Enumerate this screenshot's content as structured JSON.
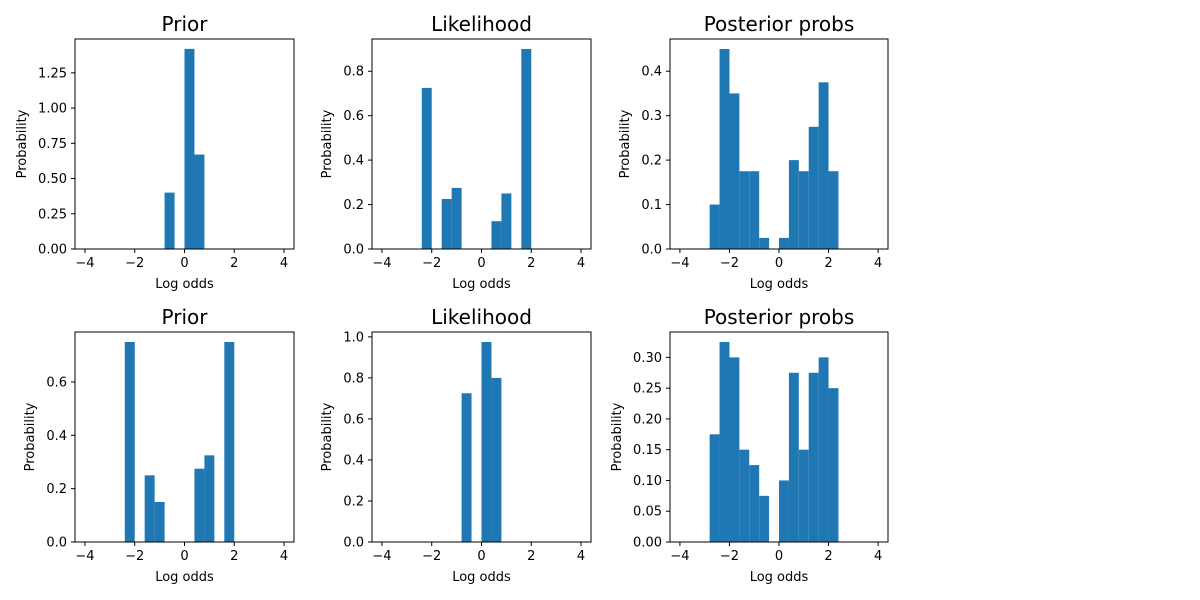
{
  "chart_data": [
    {
      "type": "bar",
      "title": "Prior",
      "xlabel": "Log odds",
      "ylabel": "Probability",
      "xlim": [
        -4.4,
        4.4
      ],
      "ylim": [
        0,
        1.49
      ],
      "xticks": [
        -4,
        -2,
        0,
        2,
        4
      ],
      "yticks": [
        "0.00",
        "0.25",
        "0.50",
        "0.75",
        "1.00",
        "1.25"
      ],
      "bin_edges": [
        -4,
        -3.6,
        -3.2,
        -2.8,
        -2.4,
        -2,
        -1.6,
        -1.2,
        -0.8,
        -0.4,
        0,
        0.4,
        0.8,
        1.2,
        1.6,
        2,
        2.4,
        2.8,
        3.2,
        3.6,
        4
      ],
      "values": [
        0,
        0,
        0,
        0,
        0,
        0,
        0,
        0,
        0.4,
        0,
        1.42,
        0.67,
        0,
        0,
        0,
        0,
        0,
        0,
        0,
        0
      ],
      "color": "#1f77b4"
    },
    {
      "type": "bar",
      "title": "Likelihood",
      "xlabel": "Log odds",
      "ylabel": "Probability",
      "xlim": [
        -4.4,
        4.4
      ],
      "ylim": [
        0,
        0.945
      ],
      "xticks": [
        -4,
        -2,
        0,
        2,
        4
      ],
      "yticks": [
        "0.0",
        "0.2",
        "0.4",
        "0.6",
        "0.8"
      ],
      "bin_edges": [
        -4,
        -3.6,
        -3.2,
        -2.8,
        -2.4,
        -2,
        -1.6,
        -1.2,
        -0.8,
        -0.4,
        0,
        0.4,
        0.8,
        1.2,
        1.6,
        2,
        2.4,
        2.8,
        3.2,
        3.6,
        4
      ],
      "values": [
        0,
        0,
        0,
        0,
        0.725,
        0,
        0.225,
        0.275,
        0,
        0,
        0,
        0.125,
        0.25,
        0,
        0.9,
        0,
        0,
        0,
        0,
        0
      ],
      "color": "#1f77b4"
    },
    {
      "type": "bar",
      "title": "Posterior probs",
      "xlabel": "Log odds",
      "ylabel": "Probability",
      "xlim": [
        -4.4,
        4.4
      ],
      "ylim": [
        0,
        0.4725
      ],
      "xticks": [
        -4,
        -2,
        0,
        2,
        4
      ],
      "yticks": [
        "0.0",
        "0.1",
        "0.2",
        "0.3",
        "0.4"
      ],
      "bin_edges": [
        -4,
        -3.6,
        -3.2,
        -2.8,
        -2.4,
        -2,
        -1.6,
        -1.2,
        -0.8,
        -0.4,
        0,
        0.4,
        0.8,
        1.2,
        1.6,
        2,
        2.4,
        2.8,
        3.2,
        3.6,
        4
      ],
      "values": [
        0,
        0,
        0,
        0.1,
        0.45,
        0.35,
        0.175,
        0.175,
        0.025,
        0,
        0.025,
        0.2,
        0.175,
        0.275,
        0.375,
        0.175,
        0,
        0,
        0,
        0
      ],
      "color": "#1f77b4"
    },
    {
      "type": "bar",
      "title": "Prior",
      "xlabel": "Log odds",
      "ylabel": "Probability",
      "xlim": [
        -4.4,
        4.4
      ],
      "ylim": [
        0,
        0.7875
      ],
      "xticks": [
        -4,
        -2,
        0,
        2,
        4
      ],
      "yticks": [
        "0.0",
        "0.2",
        "0.4",
        "0.6"
      ],
      "bin_edges": [
        -4,
        -3.6,
        -3.2,
        -2.8,
        -2.4,
        -2,
        -1.6,
        -1.2,
        -0.8,
        -0.4,
        0,
        0.4,
        0.8,
        1.2,
        1.6,
        2,
        2.4,
        2.8,
        3.2,
        3.6,
        4
      ],
      "values": [
        0,
        0,
        0,
        0,
        0.75,
        0,
        0.25,
        0.15,
        0,
        0,
        0,
        0.275,
        0.325,
        0,
        0.75,
        0,
        0,
        0,
        0,
        0
      ],
      "color": "#1f77b4"
    },
    {
      "type": "bar",
      "title": "Likelihood",
      "xlabel": "Log odds",
      "ylabel": "Probability",
      "xlim": [
        -4.4,
        4.4
      ],
      "ylim": [
        0,
        1.02375
      ],
      "xticks": [
        -4,
        -2,
        0,
        2,
        4
      ],
      "yticks": [
        "0.0",
        "0.2",
        "0.4",
        "0.6",
        "0.8",
        "1.0"
      ],
      "bin_edges": [
        -4,
        -3.6,
        -3.2,
        -2.8,
        -2.4,
        -2,
        -1.6,
        -1.2,
        -0.8,
        -0.4,
        0,
        0.4,
        0.8,
        1.2,
        1.6,
        2,
        2.4,
        2.8,
        3.2,
        3.6,
        4
      ],
      "values": [
        0,
        0,
        0,
        0,
        0,
        0,
        0,
        0,
        0.725,
        0,
        0.975,
        0.8,
        0,
        0,
        0,
        0,
        0,
        0,
        0,
        0
      ],
      "color": "#1f77b4"
    },
    {
      "type": "bar",
      "title": "Posterior probs",
      "xlabel": "Log odds",
      "ylabel": "Probability",
      "xlim": [
        -4.4,
        4.4
      ],
      "ylim": [
        0,
        0.34125
      ],
      "xticks": [
        -4,
        -2,
        0,
        2,
        4
      ],
      "yticks": [
        "0.00",
        "0.05",
        "0.10",
        "0.15",
        "0.20",
        "0.25",
        "0.30"
      ],
      "bin_edges": [
        -4,
        -3.6,
        -3.2,
        -2.8,
        -2.4,
        -2,
        -1.6,
        -1.2,
        -0.8,
        -0.4,
        0,
        0.4,
        0.8,
        1.2,
        1.6,
        2,
        2.4,
        2.8,
        3.2,
        3.6,
        4
      ],
      "values": [
        0,
        0,
        0,
        0.175,
        0.325,
        0.3,
        0.15,
        0.125,
        0.075,
        0,
        0.1,
        0.275,
        0.15,
        0.275,
        0.3,
        0.25,
        0,
        0,
        0,
        0
      ],
      "color": "#1f77b4"
    }
  ]
}
